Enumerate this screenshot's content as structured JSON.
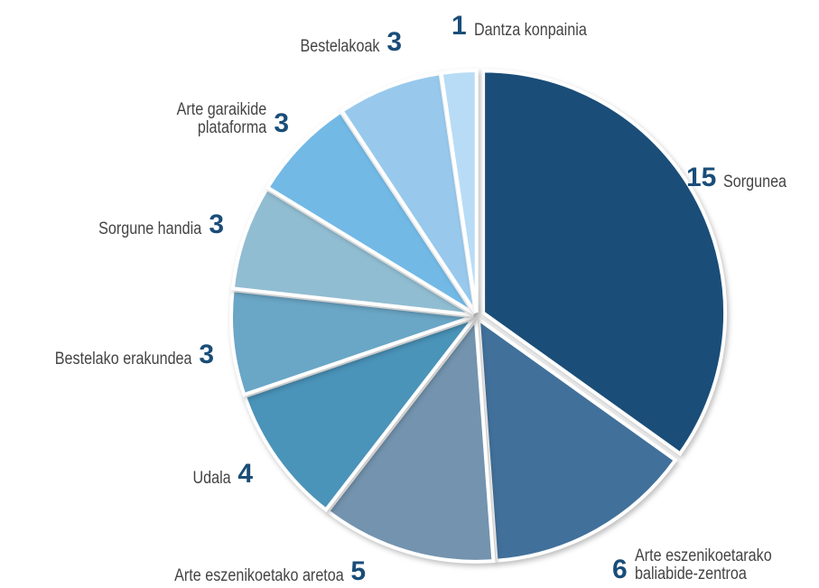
{
  "chart_data": {
    "type": "pie",
    "categories": [
      "Sorgunea",
      "Arte eszenikoetarako\nbaliabide-zentroa",
      "Arte eszenikoetako aretoa",
      "Udala",
      "Bestelako erakundea",
      "Sorgune handia",
      "Arte garaikide\nplataforma",
      "Bestelakoak",
      "Dantza konpainia"
    ],
    "values": [
      15,
      6,
      5,
      4,
      3,
      3,
      3,
      3,
      1
    ],
    "colors": [
      "#1a4d78",
      "#41709a",
      "#7393ae",
      "#4a93b9",
      "#6aa6c6",
      "#91bdd2",
      "#72b9e6",
      "#98c9ec",
      "#b8dcf5"
    ]
  }
}
